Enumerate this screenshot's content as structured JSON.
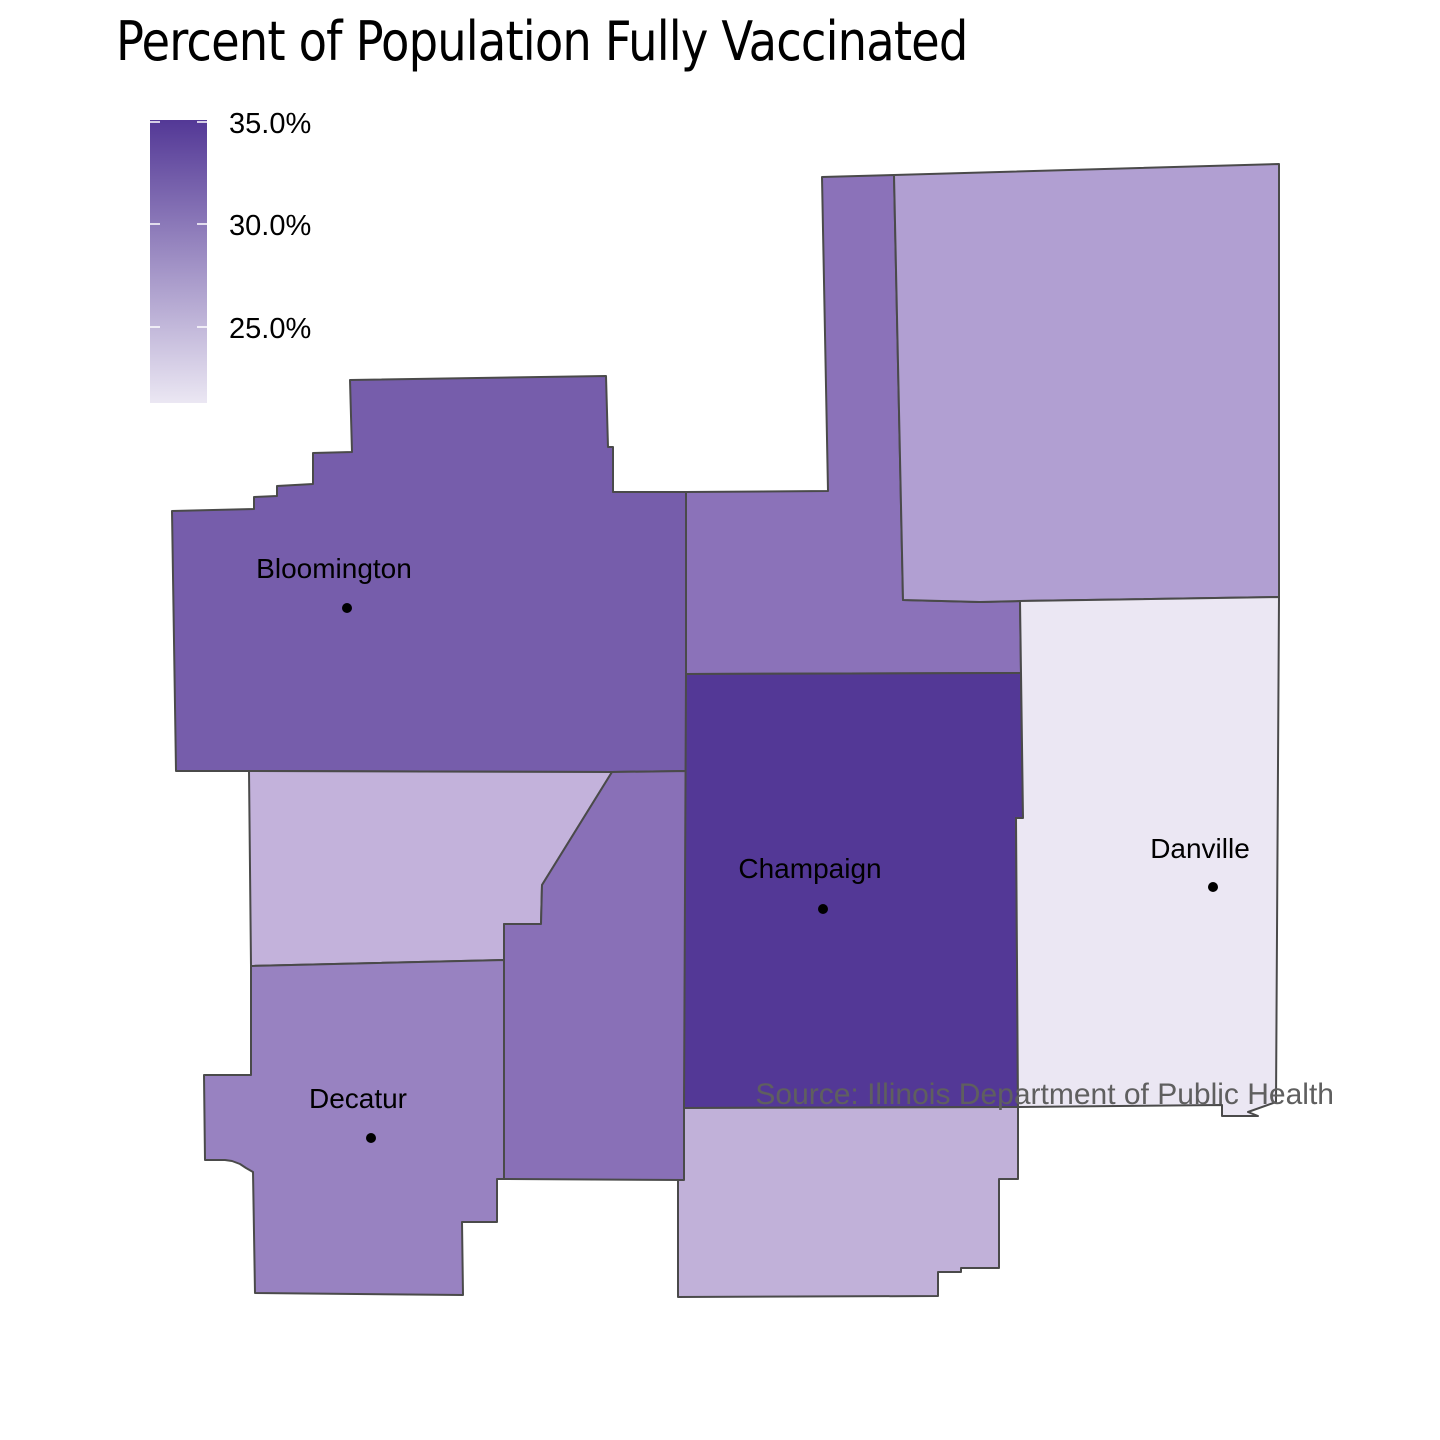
{
  "title": "Percent of Population Fully Vaccinated",
  "source": "Source: Illinois Department of Public Health",
  "legend": {
    "ticks": [
      {
        "value": 35.0,
        "label": "35.0%"
      },
      {
        "value": 30.0,
        "label": "30.0%"
      },
      {
        "value": 25.0,
        "label": "25.0%"
      }
    ],
    "color_low": "#ebe7f3",
    "color_high": "#533896"
  },
  "counties": [
    {
      "id": "bloomington-county",
      "color": "#765dab"
    },
    {
      "id": "north-middle-county",
      "color": "#8b72b9"
    },
    {
      "id": "northeast-county",
      "color": "#b19fd2"
    },
    {
      "id": "west-middle-county",
      "color": "#c3b2db"
    },
    {
      "id": "middle-county",
      "color": "#8970b7"
    },
    {
      "id": "champaign-county",
      "color": "#533896"
    },
    {
      "id": "danville-county",
      "color": "#ebe7f3"
    },
    {
      "id": "decatur-county",
      "color": "#9882c1"
    },
    {
      "id": "south-county",
      "color": "#c1b1d9"
    }
  ],
  "cities": [
    {
      "name": "Bloomington"
    },
    {
      "name": "Champaign"
    },
    {
      "name": "Danville"
    },
    {
      "name": "Decatur"
    }
  ]
}
